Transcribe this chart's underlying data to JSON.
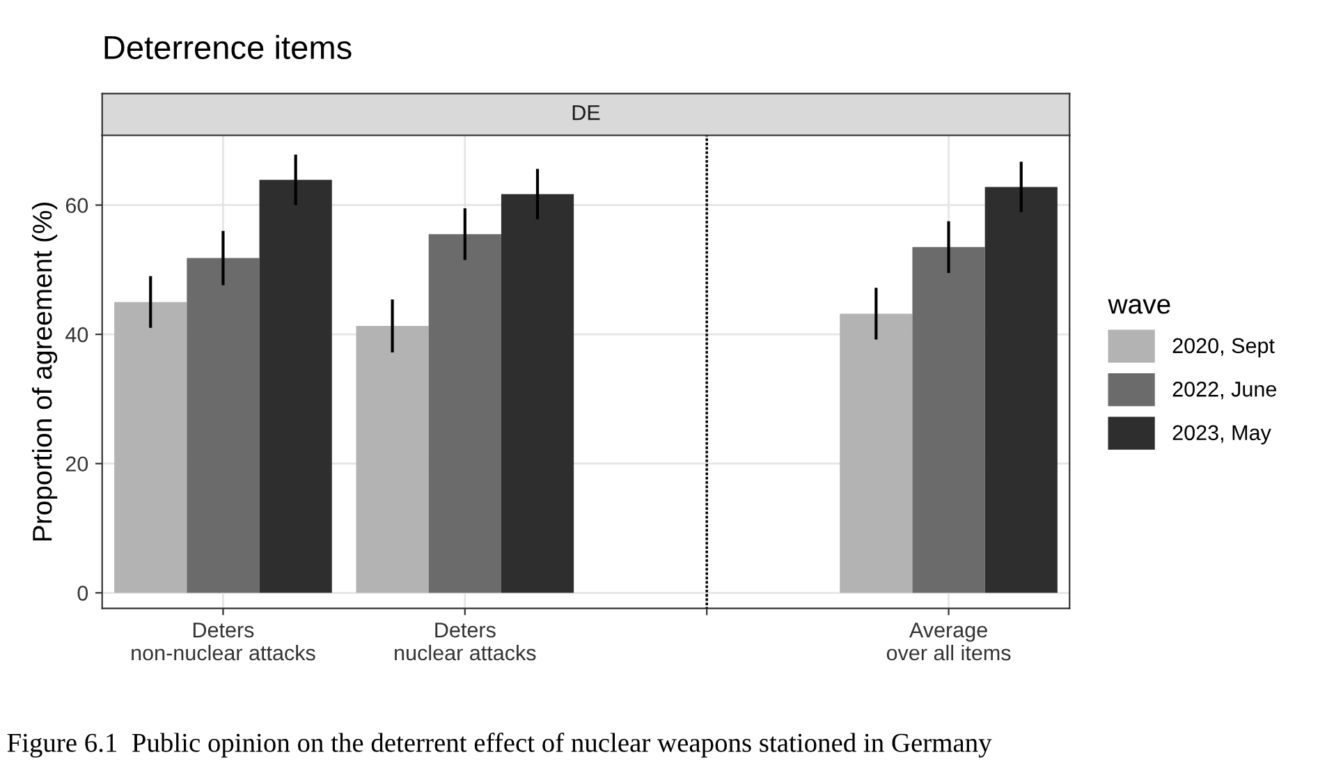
{
  "chart_data": {
    "type": "bar",
    "title": "Deterrence items",
    "subtitle": "DE",
    "ylabel": "Proportion of agreement (%)",
    "legend_title": "wave",
    "categories": [
      "Deters\nnon-nuclear attacks",
      "Deters\nnuclear attacks",
      null,
      "Average\nover all items"
    ],
    "series": [
      {
        "name": "2020, Sept",
        "color": "#b3b3b3",
        "values": [
          45,
          41.3,
          null,
          43.2
        ],
        "errors": [
          4,
          4.1,
          null,
          4
        ]
      },
      {
        "name": "2022, June",
        "color": "#6b6b6b",
        "values": [
          51.8,
          55.5,
          null,
          53.5
        ],
        "errors": [
          4.2,
          4,
          null,
          4
        ]
      },
      {
        "name": "2023, May",
        "color": "#2e2e2e",
        "values": [
          63.9,
          61.7,
          null,
          62.8
        ],
        "errors": [
          3.9,
          3.9,
          null,
          3.9
        ]
      }
    ],
    "ylim": [
      -2.4,
      70.8
    ],
    "yticks": [
      0,
      20,
      40,
      60
    ],
    "grid": true,
    "legend": "right",
    "annotations": [
      "Figure 6.1  Public opinion on the deterrent effect of nuclear weapons stationed in Germany"
    ]
  }
}
